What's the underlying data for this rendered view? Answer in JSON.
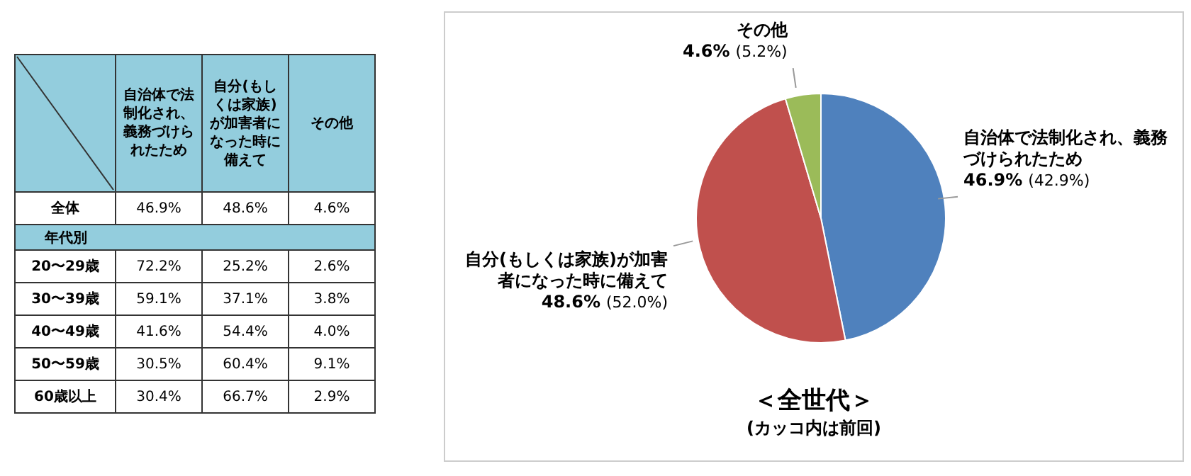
{
  "chart_data": [
    {
      "type": "heatmap",
      "categories": [
        "自治体で法制化され、義務づけられたため",
        "自分(もしくは家族)が加害者になった時に備えて",
        "その他"
      ],
      "y_categories": [
        "全体",
        "年代別",
        "20〜29歳",
        "30〜39歳",
        "40〜49歳",
        "50〜59歳",
        "60歳以上"
      ],
      "cells": [
        [
          46.9,
          48.6,
          4.6
        ],
        [
          null,
          null,
          null
        ],
        [
          72.2,
          25.2,
          2.6
        ],
        [
          59.1,
          37.1,
          3.8
        ],
        [
          41.6,
          54.4,
          4.0
        ],
        [
          30.5,
          60.4,
          9.1
        ],
        [
          30.4,
          66.7,
          2.9
        ]
      ],
      "cell_labels": [
        [
          "46.9%",
          "48.6%",
          "4.6%"
        ],
        [
          null,
          null,
          null
        ],
        [
          "72.2%",
          "25.2%",
          "2.6%"
        ],
        [
          "59.1%",
          "37.1%",
          "3.8%"
        ],
        [
          "41.6%",
          "54.4%",
          "4.0%"
        ],
        [
          "30.5%",
          "60.4%",
          "9.1%"
        ],
        [
          "30.4%",
          "66.7%",
          "2.9%"
        ]
      ]
    },
    {
      "type": "pie",
      "title": "＜全世代＞",
      "subtitle": "(カッコ内は前回)",
      "categories": [
        "自治体で法制化され、義務づけられたため",
        "自分(もしくは家族)が加害者になった時に備えて",
        "その他"
      ],
      "values": [
        46.9,
        48.6,
        4.6
      ],
      "colors": [
        "#4f81bd",
        "#c0504d",
        "#9bbb59"
      ],
      "value_labels": [
        "46.9%",
        "48.6%",
        "4.6%"
      ],
      "annotations": [
        "(42.9%)",
        "(52.0%)",
        "(5.2%)"
      ]
    }
  ]
}
